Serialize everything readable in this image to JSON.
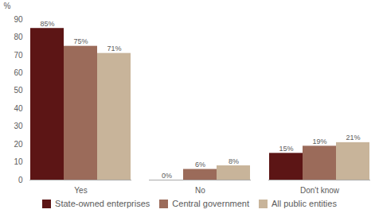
{
  "chart_data": {
    "type": "bar",
    "categories": [
      "Yes",
      "No",
      "Don't know"
    ],
    "series": [
      {
        "name": "State-owned enterprises",
        "color": "#5c1515",
        "values": [
          85,
          0,
          15
        ],
        "value_labels": [
          "85%",
          "0%",
          "15%"
        ]
      },
      {
        "name": "Central government",
        "color": "#9b6b5a",
        "values": [
          75,
          6,
          19
        ],
        "value_labels": [
          "75%",
          "6%",
          "19%"
        ]
      },
      {
        "name": "All public entities",
        "color": "#c8b49a",
        "values": [
          71,
          8,
          21
        ],
        "value_labels": [
          "71%",
          "8%",
          "21%"
        ]
      }
    ],
    "ylabel": "%",
    "ylim": [
      0,
      90
    ],
    "yticks": [
      0,
      10,
      20,
      30,
      40,
      50,
      60,
      70,
      80,
      90
    ],
    "data_labels": true,
    "grid": false,
    "legend": "bottom"
  }
}
